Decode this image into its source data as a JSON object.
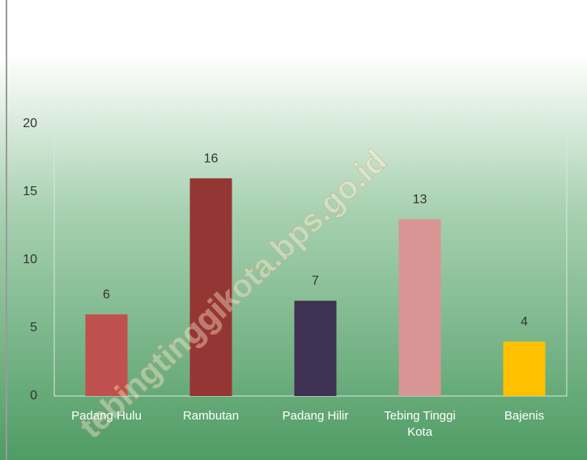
{
  "chart_data": {
    "type": "bar",
    "categories": [
      "Padang Hulu",
      "Rambutan",
      "Padang Hilir",
      "Tebing Tinggi Kota",
      "Bajenis"
    ],
    "values": [
      6,
      16,
      7,
      13,
      4
    ],
    "colors": [
      "#c0504d",
      "#943634",
      "#3f3151",
      "#d99594",
      "#ffc000"
    ],
    "ylim": [
      0,
      20
    ],
    "yticks": [
      0,
      5,
      10,
      15,
      20
    ],
    "grid": false,
    "watermark": "tebingtinggikota.bps.go.id"
  }
}
